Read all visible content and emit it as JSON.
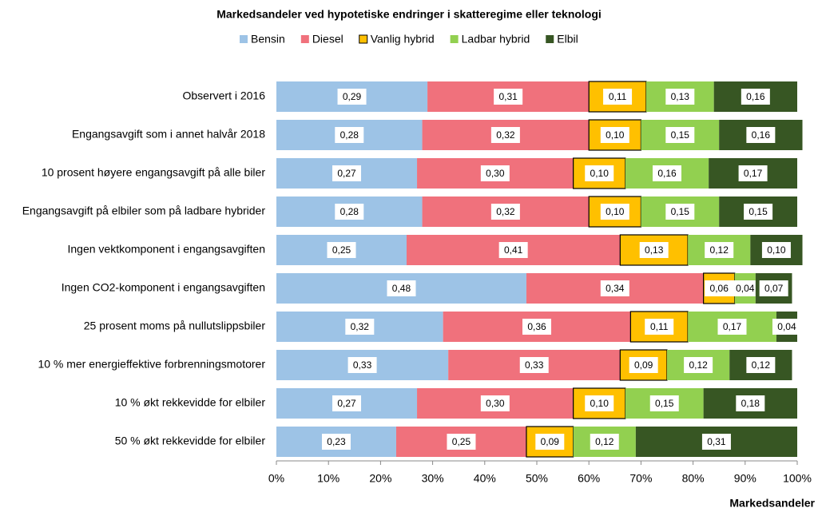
{
  "chart_data": {
    "type": "stacked-horizontal-bar",
    "title": "Markedsandeler ved hypotetiske endringer i skatteregime eller teknologi",
    "x_label": "Markedsandeler",
    "categories": [
      "Observert i 2016",
      "Engangsavgift som i annet halvår 2018",
      "10 prosent høyere engangsavgift på alle biler",
      "Engangsavgift på elbiler som på ladbare hybrider",
      "Ingen vektkomponent i engangsavgiften",
      "Ingen CO2-komponent i engangsavgiften",
      "25 prosent moms på nullutslippsbiler",
      "10 % mer energieffektive forbrenningsmotorer",
      "10 % økt rekkevidde for elbiler",
      "50 % økt rekkevidde for elbiler"
    ],
    "series": [
      {
        "name": "Bensin",
        "color": "#9dc3e6",
        "values": [
          29,
          28,
          27,
          28,
          25,
          48,
          32,
          33,
          27,
          23
        ],
        "value_labels": [
          "0,29",
          "0,28",
          "0,27",
          "0,28",
          "0,25",
          "0,48",
          "0,32",
          "0,33",
          "0,27",
          "0,23"
        ]
      },
      {
        "name": "Diesel",
        "color": "#f0717c",
        "values": [
          31,
          32,
          30,
          32,
          41,
          34,
          36,
          33,
          30,
          25
        ],
        "value_labels": [
          "0,31",
          "0,32",
          "0,30",
          "0,32",
          "0,41",
          "0,34",
          "0,36",
          "0,33",
          "0,30",
          "0,25"
        ]
      },
      {
        "name": "Vanlig hybrid",
        "color": "#ffc000",
        "values": [
          11,
          10,
          10,
          10,
          13,
          6,
          11,
          9,
          10,
          9
        ],
        "value_labels": [
          "0,11",
          "0,10",
          "0,10",
          "0,10",
          "0,13",
          "0,06",
          "0,11",
          "0,09",
          "0,10",
          "0,09"
        ]
      },
      {
        "name": "Ladbar hybrid",
        "color": "#92d050",
        "values": [
          13,
          15,
          16,
          15,
          12,
          4,
          17,
          12,
          15,
          12
        ],
        "value_labels": [
          "0,13",
          "0,15",
          "0,16",
          "0,15",
          "0,12",
          "0,04",
          "0,17",
          "0,12",
          "0,15",
          "0,12"
        ]
      },
      {
        "name": "Elbil",
        "color": "#375623",
        "values": [
          16,
          16,
          17,
          15,
          10,
          7,
          4,
          12,
          18,
          31
        ],
        "value_labels": [
          "0,16",
          "0,16",
          "0,17",
          "0,15",
          "0,10",
          "0,07",
          "0,04",
          "0,12",
          "0,18",
          "0,31"
        ]
      }
    ],
    "xlim": [
      0,
      100
    ],
    "xticks": [
      {
        "value": 0,
        "label": "0%"
      },
      {
        "value": 10,
        "label": "10%"
      },
      {
        "value": 20,
        "label": "20%"
      },
      {
        "value": 30,
        "label": "30%"
      },
      {
        "value": 40,
        "label": "40%"
      },
      {
        "value": 50,
        "label": "50%"
      },
      {
        "value": 60,
        "label": "60%"
      },
      {
        "value": 70,
        "label": "70%"
      },
      {
        "value": 80,
        "label": "80%"
      },
      {
        "value": 90,
        "label": "90%"
      },
      {
        "value": 100,
        "label": "100%"
      }
    ],
    "legend": "top"
  }
}
